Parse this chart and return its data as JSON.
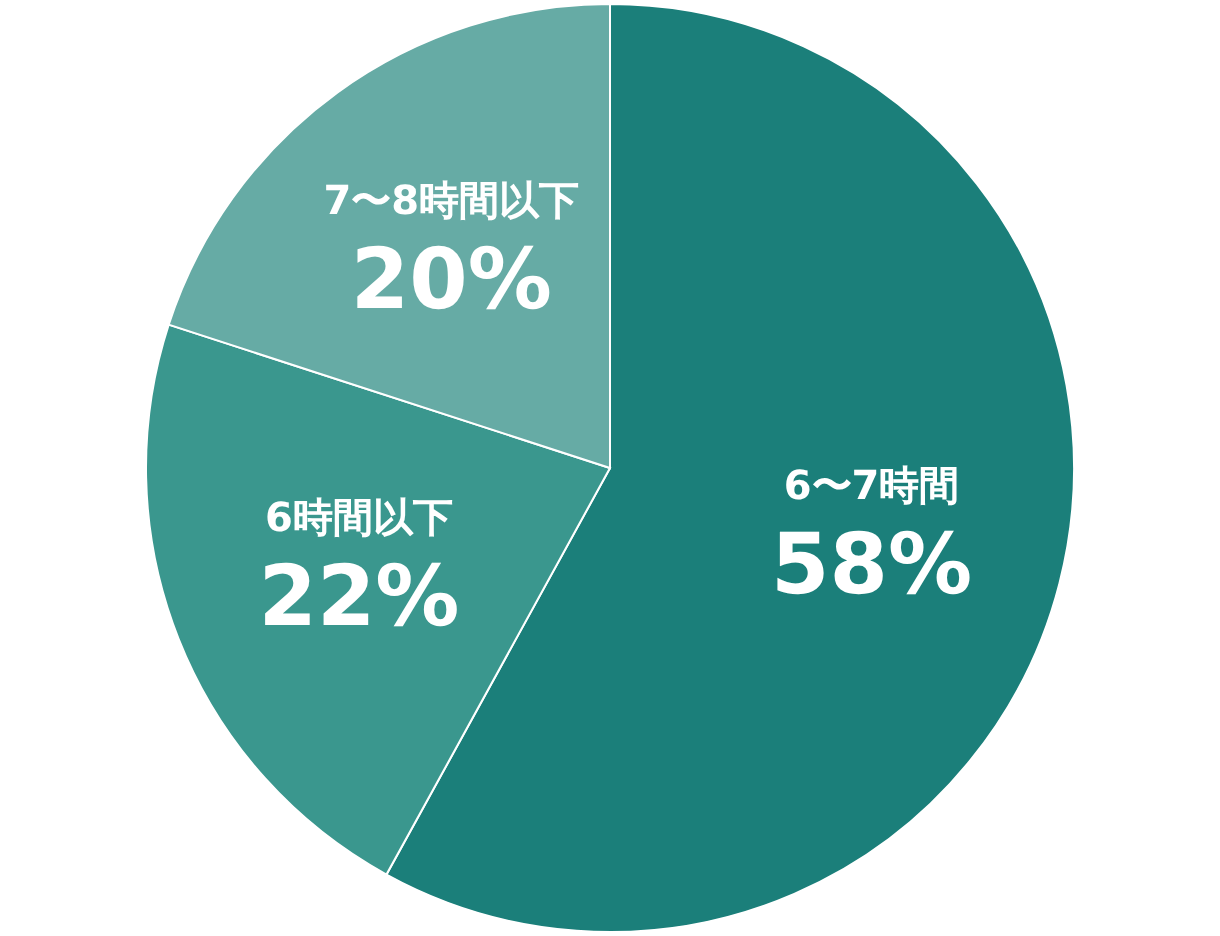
{
  "chart_data": {
    "type": "pie",
    "categories": [
      "6〜7時間",
      "6時間以下",
      "7〜8時間以下"
    ],
    "values": [
      58,
      22,
      20
    ],
    "colors": [
      "#1b7f7a",
      "#3a978e",
      "#66aba5"
    ],
    "value_labels": [
      "58%",
      "22%",
      "20%"
    ]
  }
}
